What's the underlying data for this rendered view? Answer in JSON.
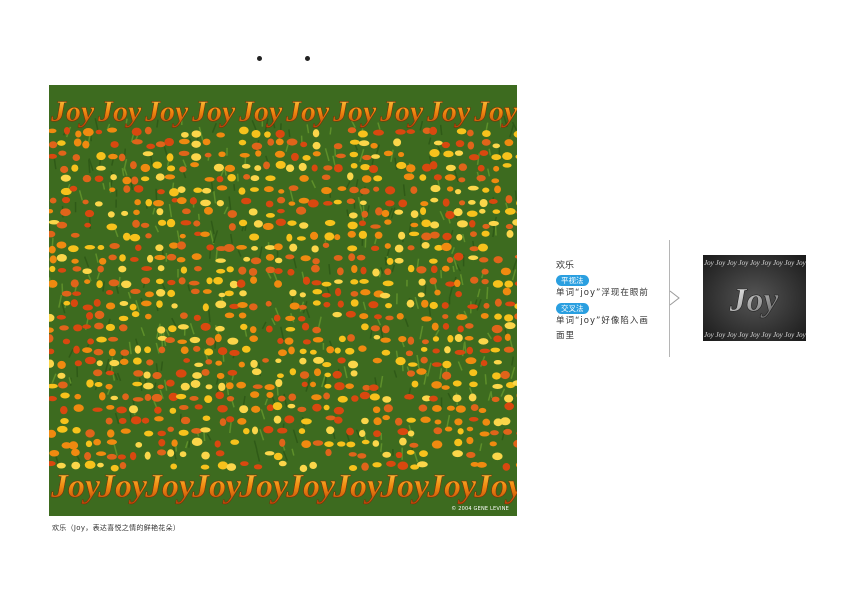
{
  "stereogram": {
    "motif_text": "Joy",
    "copyright": "© 2004 GENE LEVINE"
  },
  "caption": "欢乐（Joy，表达喜悦之情的鲜艳花朵）",
  "side_panel": {
    "title": "欢乐",
    "method1_label": "平视法",
    "method1_desc": "单词“joy”浮现在眼前",
    "method2_label": "交叉法",
    "method2_desc": "单词“joy”好像陷入画面里"
  },
  "preview": {
    "text": "Joy"
  },
  "colors": {
    "pill_blue": "#2a9fe0",
    "foliage_green": "#3d6b1f",
    "flower_orange": "#f08a10",
    "flower_yellow": "#f7c21c"
  }
}
